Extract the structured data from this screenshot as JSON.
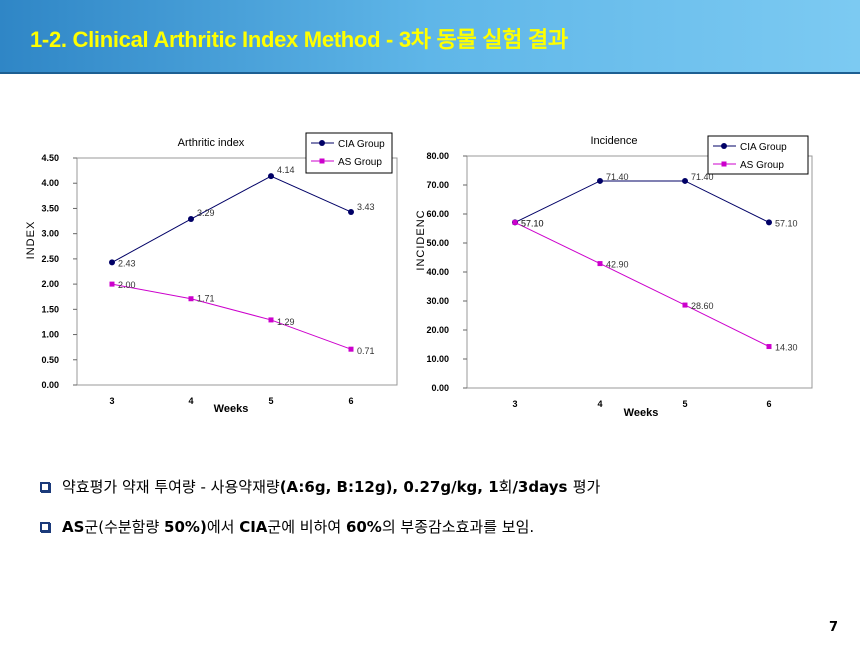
{
  "header": {
    "title": "1-2. Clinical Arthritic Index Method - 3차 동물 실험 결과"
  },
  "chart_data": [
    {
      "type": "line",
      "title": "Arthritic index",
      "xlabel": "Weeks",
      "ylabel": "INDEX",
      "categories": [
        "3",
        "4",
        "5",
        "6"
      ],
      "ylim": [
        0,
        4.5
      ],
      "yticks": [
        "0.00",
        "0.50",
        "1.00",
        "1.50",
        "2.00",
        "2.50",
        "3.00",
        "3.50",
        "4.00",
        "4.50"
      ],
      "series": [
        {
          "name": "CIA Group",
          "values": [
            2.43,
            3.29,
            4.14,
            3.43
          ],
          "labels": [
            "2.43",
            "3.29",
            "4.14",
            "3.43"
          ],
          "color": "#000066",
          "marker": "circle"
        },
        {
          "name": "AS Group",
          "values": [
            2.0,
            1.71,
            1.29,
            0.71
          ],
          "labels": [
            "2.00",
            "1.71",
            "1.29",
            "0.71"
          ],
          "color": "#cc00cc",
          "marker": "square"
        }
      ],
      "legend": "top-right"
    },
    {
      "type": "line",
      "title": "Incidence",
      "xlabel": "Weeks",
      "ylabel": "INCIDENC",
      "categories": [
        "3",
        "4",
        "5",
        "6"
      ],
      "ylim": [
        0,
        80
      ],
      "yticks": [
        "0.00",
        "10.00",
        "20.00",
        "30.00",
        "40.00",
        "50.00",
        "60.00",
        "70.00",
        "80.00"
      ],
      "series": [
        {
          "name": "CIA Group",
          "values": [
            57.1,
            71.4,
            71.4,
            57.1
          ],
          "labels": [
            "57.10",
            "71.40",
            "71.40",
            "57.10"
          ],
          "color": "#000066",
          "marker": "circle"
        },
        {
          "name": "AS Group",
          "values": [
            57.1,
            42.9,
            28.6,
            14.3
          ],
          "labels": [
            "57.10",
            "42.90",
            "28.60",
            "14.30"
          ],
          "color": "#cc00cc",
          "marker": "square"
        }
      ],
      "legend": "top-right"
    }
  ],
  "bullets": [
    {
      "parts": [
        {
          "t": "약효평가 약재 투여량 - 사용약재량",
          "b": false
        },
        {
          "t": "(A:6g, B:12g), 0.27g/kg, 1",
          "b": true
        },
        {
          "t": "회",
          "b": false
        },
        {
          "t": "/3days ",
          "b": true
        },
        {
          "t": "평가",
          "b": false
        }
      ]
    },
    {
      "parts": [
        {
          "t": "AS",
          "b": true
        },
        {
          "t": "군(수분함량 ",
          "b": false
        },
        {
          "t": "50%)",
          "b": true
        },
        {
          "t": "에서 ",
          "b": false
        },
        {
          "t": "CIA",
          "b": true
        },
        {
          "t": "군에 비하여 ",
          "b": false
        },
        {
          "t": "60%",
          "b": true
        },
        {
          "t": "의 부종감소효과를 보임.",
          "b": false
        }
      ]
    }
  ],
  "footer": {
    "page_number": "7"
  },
  "colors": {
    "accent": "#ffff00",
    "cia": "#000066",
    "as": "#cc00cc"
  }
}
